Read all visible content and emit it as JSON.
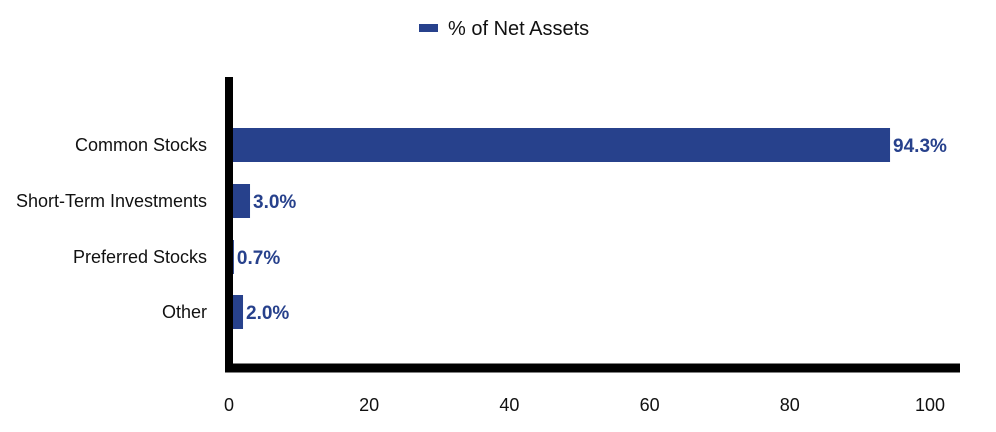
{
  "colors": {
    "bar": "#27418c",
    "axis": "#000000",
    "text": "#111111"
  },
  "legend": {
    "label": "% of Net Assets"
  },
  "chart_data": {
    "type": "bar",
    "orientation": "horizontal",
    "categories": [
      "Common Stocks",
      "Short-Term Investments",
      "Preferred Stocks",
      "Other"
    ],
    "series": [
      {
        "name": "% of Net Assets",
        "values": [
          94.3,
          3.0,
          0.7,
          2.0
        ]
      }
    ],
    "data_labels": [
      "94.3%",
      "3.0%",
      "0.7%",
      "2.0%"
    ],
    "xlim": [
      0,
      100
    ],
    "x_ticks": [
      0,
      20,
      40,
      60,
      80,
      100
    ],
    "title": "",
    "xlabel": "",
    "ylabel": "",
    "grid": false,
    "legend_position": "top-center"
  }
}
